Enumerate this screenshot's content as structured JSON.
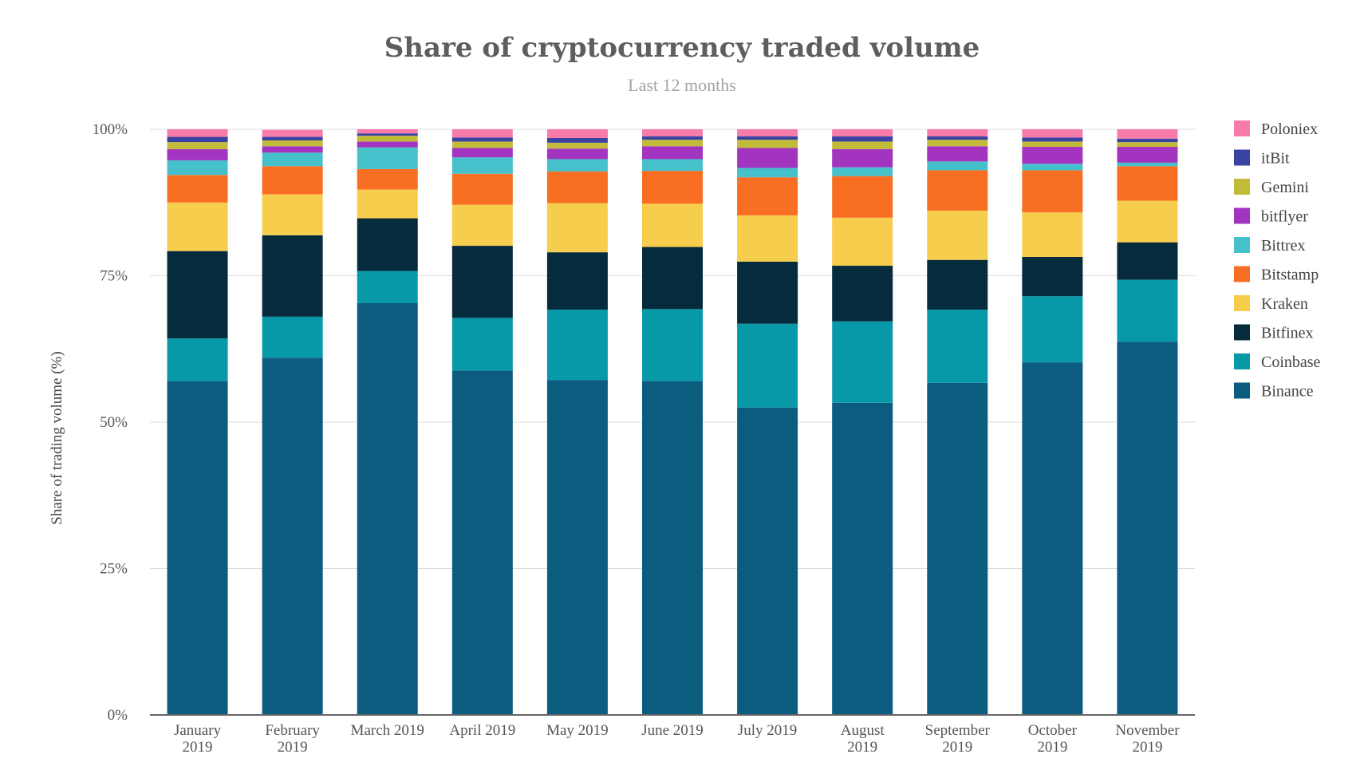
{
  "chart_data": {
    "type": "bar",
    "stacked": true,
    "title": "Share of cryptocurrency traded volume",
    "subtitle": "Last 12 months",
    "xlabel": "",
    "ylabel": "Share of trading volume (%)",
    "ylim": [
      0,
      100
    ],
    "yticks": [
      "0%",
      "25%",
      "50%",
      "75%",
      "100%"
    ],
    "ytick_values": [
      0,
      25,
      50,
      75,
      100
    ],
    "grid": true,
    "legend_position": "right",
    "categories": [
      [
        "January",
        "2019"
      ],
      [
        "February",
        "2019"
      ],
      [
        "March 2019"
      ],
      [
        "April 2019"
      ],
      [
        "May 2019"
      ],
      [
        "June 2019"
      ],
      [
        "July 2019"
      ],
      [
        "August",
        "2019"
      ],
      [
        "September",
        "2019"
      ],
      [
        "October",
        "2019"
      ],
      [
        "November",
        "2019"
      ]
    ],
    "series": [
      {
        "name": "Binance",
        "color": "#0c5c80",
        "values": [
          57.0,
          61.0,
          70.3,
          58.8,
          57.2,
          57.0,
          52.5,
          53.3,
          56.7,
          60.2,
          63.7
        ]
      },
      {
        "name": "Coinbase",
        "color": "#0899a8",
        "values": [
          7.3,
          7.0,
          5.5,
          9.0,
          12.0,
          12.3,
          14.3,
          13.9,
          12.5,
          11.3,
          10.6
        ]
      },
      {
        "name": "Bitfinex",
        "color": "#062b3c",
        "values": [
          14.9,
          13.9,
          9.0,
          12.3,
          9.8,
          10.6,
          10.6,
          9.5,
          8.5,
          6.7,
          6.4
        ]
      },
      {
        "name": "Kraken",
        "color": "#f7cd4d",
        "values": [
          8.3,
          7.0,
          4.9,
          7.0,
          8.4,
          7.4,
          7.9,
          8.2,
          8.4,
          7.6,
          7.1
        ]
      },
      {
        "name": "Bitstamp",
        "color": "#f86e23",
        "values": [
          4.7,
          4.8,
          3.5,
          5.3,
          5.4,
          5.6,
          6.5,
          7.1,
          6.9,
          7.2,
          5.9
        ]
      },
      {
        "name": "Bittrex",
        "color": "#46c1cb",
        "values": [
          2.5,
          2.3,
          3.7,
          2.8,
          2.1,
          2.0,
          1.6,
          1.5,
          1.5,
          1.1,
          0.6
        ]
      },
      {
        "name": "bitflyer",
        "color": "#a234c0",
        "values": [
          1.9,
          1.1,
          1.0,
          1.6,
          1.8,
          2.2,
          3.4,
          3.1,
          2.6,
          2.9,
          2.7
        ]
      },
      {
        "name": "Gemini",
        "color": "#c2bb3a",
        "values": [
          1.2,
          1.0,
          1.0,
          1.1,
          1.0,
          1.1,
          1.4,
          1.3,
          1.1,
          0.9,
          0.8
        ]
      },
      {
        "name": "itBit",
        "color": "#3b43a2",
        "values": [
          0.9,
          0.6,
          0.4,
          0.7,
          0.8,
          0.6,
          0.6,
          0.9,
          0.6,
          0.7,
          0.6
        ]
      },
      {
        "name": "Poloniex",
        "color": "#f77bab",
        "values": [
          1.3,
          1.2,
          0.7,
          1.4,
          1.5,
          1.2,
          1.2,
          1.2,
          1.2,
          1.4,
          1.6
        ]
      }
    ],
    "legend_order": [
      "Poloniex",
      "itBit",
      "Gemini",
      "bitflyer",
      "Bittrex",
      "Bitstamp",
      "Kraken",
      "Bitfinex",
      "Coinbase",
      "Binance"
    ]
  }
}
